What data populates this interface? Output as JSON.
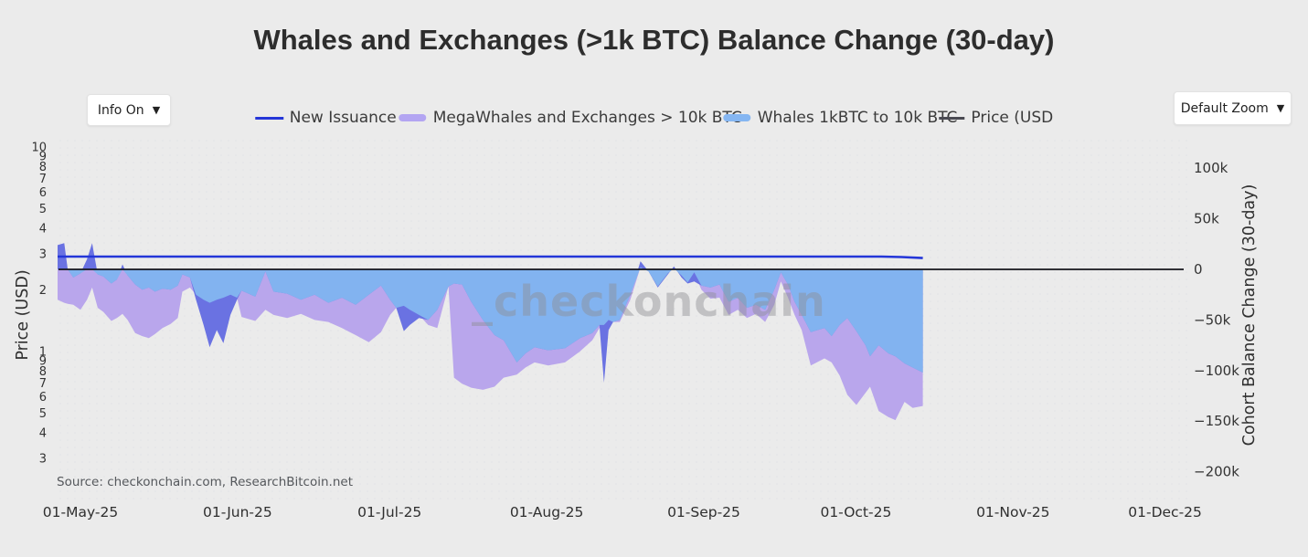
{
  "title": "Whales and Exchanges (>1k BTC) Balance Change (30-day)",
  "controls": {
    "info_button": "Info On",
    "zoom_button": "Default Zoom",
    "dropdown_arrow": "▼"
  },
  "legend": {
    "items": [
      {
        "label": "New Issuance",
        "swatch": "blue-line",
        "color": "#2436d8"
      },
      {
        "label": "MegaWhales and Exchanges > 10k BTC",
        "swatch": "purple-band",
        "color": "#b3a5f2"
      },
      {
        "label": "Whales 1kBTC to 10k BTC",
        "swatch": "azure-band",
        "color": "#85b6f2"
      },
      {
        "label": "Price (USD",
        "swatch": "dark-line",
        "color": "#4a4a52"
      }
    ]
  },
  "watermark": "_checkonchain",
  "source_note": "Source: checkonchain.com, ResearchBitcoin.net",
  "theme": {
    "page_background": "#ebebeb",
    "zero_line_color": "#15151c",
    "tick_label_color": "#333333"
  },
  "chart_data": {
    "type": "area",
    "title": "Whales and Exchanges (>1k BTC) Balance Change (30-day)",
    "left_axis": {
      "label": "Price (USD)",
      "scale": "log",
      "ticks": [
        10,
        9,
        8,
        7,
        6,
        5,
        4,
        3,
        2,
        1,
        0.9,
        0.8,
        0.7,
        0.6,
        0.5,
        0.4,
        0.3
      ],
      "tick_labels": [
        "10",
        "9",
        "8",
        "7",
        "6",
        "5",
        "4",
        "3",
        "2",
        "1",
        "9",
        "8",
        "7",
        "6",
        "5",
        "4",
        "3"
      ]
    },
    "right_axis": {
      "label": "Cohort Balance Change (30-day)",
      "unit": "BTC",
      "ticks": [
        100000,
        50000,
        0,
        -50000,
        -100000,
        -150000,
        -200000
      ],
      "tick_labels": [
        "100k",
        "50k",
        "0",
        "−50k",
        "−100k",
        "−150k",
        "−200k"
      ]
    },
    "x_axis": {
      "tick_labels": [
        "01-May-25",
        "01-Jun-25",
        "01-Jul-25",
        "01-Aug-25",
        "01-Sep-25",
        "01-Oct-25",
        "01-Nov-25",
        "01-Dec-25"
      ],
      "tick_day_offsets": [
        0,
        31,
        61,
        92,
        123,
        153,
        184,
        214
      ],
      "data_start_day": -4.5,
      "data_end_day": 166.2
    },
    "overlap_fill": "#82b3f0",
    "days": [
      -4.5,
      -3.2,
      -2.5,
      -1.4,
      0,
      1.3,
      2.3,
      3.4,
      4.5,
      6.1,
      7.2,
      8.3,
      9.3,
      10.8,
      12.2,
      13.5,
      14.7,
      16.2,
      17.8,
      19.2,
      20.1,
      21.6,
      22.8,
      24.3,
      25.5,
      26.9,
      28.2,
      29.6,
      30.9,
      31.8,
      34.5,
      36.5,
      38.1,
      40.8,
      43.5,
      46.2,
      48.9,
      51.6,
      54.3,
      56.9,
      59.3,
      61.1,
      62.3,
      63.8,
      65,
      66.8,
      68.6,
      70.4,
      72.6,
      73.7,
      75.3,
      77.1,
      79.4,
      81.7,
      83.5,
      86.1,
      87.8,
      89.6,
      92.3,
      95.6,
      98.6,
      101,
      102.4,
      103.3,
      104.2,
      105.1,
      106.4,
      108.5,
      110.5,
      112.1,
      113.9,
      115.9,
      117.1,
      118.6,
      119.8,
      121.1,
      122.5,
      124.3,
      126.1,
      127.9,
      129.7,
      131.5,
      133.3,
      135.1,
      136.9,
      138.2,
      139.6,
      140.9,
      142.3,
      144.1,
      146.8,
      148.2,
      149.8,
      151.3,
      153.1,
      154.9,
      155.8,
      157.5,
      159.4,
      160.8,
      162.6,
      164.2,
      166.2
    ],
    "series": [
      {
        "name": "New Issuance",
        "type": "line",
        "color": "#2436d8",
        "unit": "kBTC per 30d",
        "points": [
          [
            -4.5,
            12.6
          ],
          [
            158,
            12.6
          ],
          [
            162,
            12.2
          ],
          [
            166.2,
            11.2
          ]
        ]
      },
      {
        "name": "MegaWhales and Exchanges > 10k BTC",
        "type": "area",
        "fill": "#b9a6ec",
        "unit": "kBTC per 30d",
        "values": [
          -30,
          -33,
          -34,
          -35,
          -40,
          -30,
          -18,
          -38,
          -42,
          -51,
          -48,
          -44,
          -50,
          -63,
          -66,
          -68,
          -64,
          -58,
          -54,
          -48,
          -22,
          -18,
          -25,
          -30,
          -33,
          -30,
          -28,
          -25,
          -28,
          -47,
          -51,
          -40,
          -45,
          -48,
          -44,
          -50,
          -52,
          -58,
          -65,
          -72,
          -62,
          -45,
          -38,
          -36,
          -40,
          -45,
          -55,
          -58,
          -17,
          -107,
          -113,
          -117,
          -119,
          -116,
          -107,
          -104,
          -97,
          -92,
          -95,
          -92,
          -81,
          -70,
          -58,
          -55,
          -50,
          -52,
          -52,
          -30,
          2,
          -2,
          -17,
          -4,
          1,
          -6,
          -13,
          -3,
          -20,
          -29,
          -28,
          -45,
          -40,
          -48,
          -44,
          -52,
          -35,
          -12,
          -28,
          -45,
          -60,
          -95,
          -88,
          -92,
          -105,
          -124,
          -134,
          -122,
          -116,
          -140,
          -146,
          -149,
          -131,
          -137,
          -135
        ]
      },
      {
        "name": "Whales 1kBTC to 10k BTC",
        "type": "area",
        "fill": "#6a72e2",
        "unit": "kBTC per 30d",
        "values": [
          24,
          26,
          0,
          -8,
          -4,
          10,
          26,
          -5,
          -7,
          -14,
          -10,
          5,
          -6,
          -15,
          -20,
          -18,
          -22,
          -19,
          -20,
          -16,
          -5,
          -8,
          -30,
          -55,
          -77,
          -60,
          -73,
          -45,
          -30,
          -21,
          -27,
          -2,
          -22,
          -24,
          -30,
          -25,
          -33,
          -28,
          -35,
          -25,
          -16,
          -30,
          -38,
          -61,
          -55,
          -48,
          -50,
          -40,
          -17,
          -14,
          -15,
          -32,
          -50,
          -65,
          -70,
          -92,
          -83,
          -77,
          -80,
          -78,
          -68,
          -63,
          -55,
          -112,
          -60,
          -52,
          -50,
          -25,
          8,
          -2,
          -18,
          -5,
          3,
          -8,
          -14,
          -12,
          -16,
          -18,
          -15,
          -32,
          -28,
          -38,
          -35,
          -40,
          -20,
          -3,
          -15,
          -32,
          -45,
          -62,
          -58,
          -66,
          -55,
          -48,
          -61,
          -75,
          -86,
          -75,
          -83,
          -86,
          -93,
          -97,
          -102
        ]
      },
      {
        "name": "Price (USD",
        "type": "line",
        "color": "#15151c",
        "visual_note": "appears flat, coincident with the zero baseline of the right axis"
      }
    ],
    "layout_hints": {
      "grid": "off",
      "legend_position": "top-center",
      "zero_baseline": true,
      "plot_background_dots": true
    }
  }
}
